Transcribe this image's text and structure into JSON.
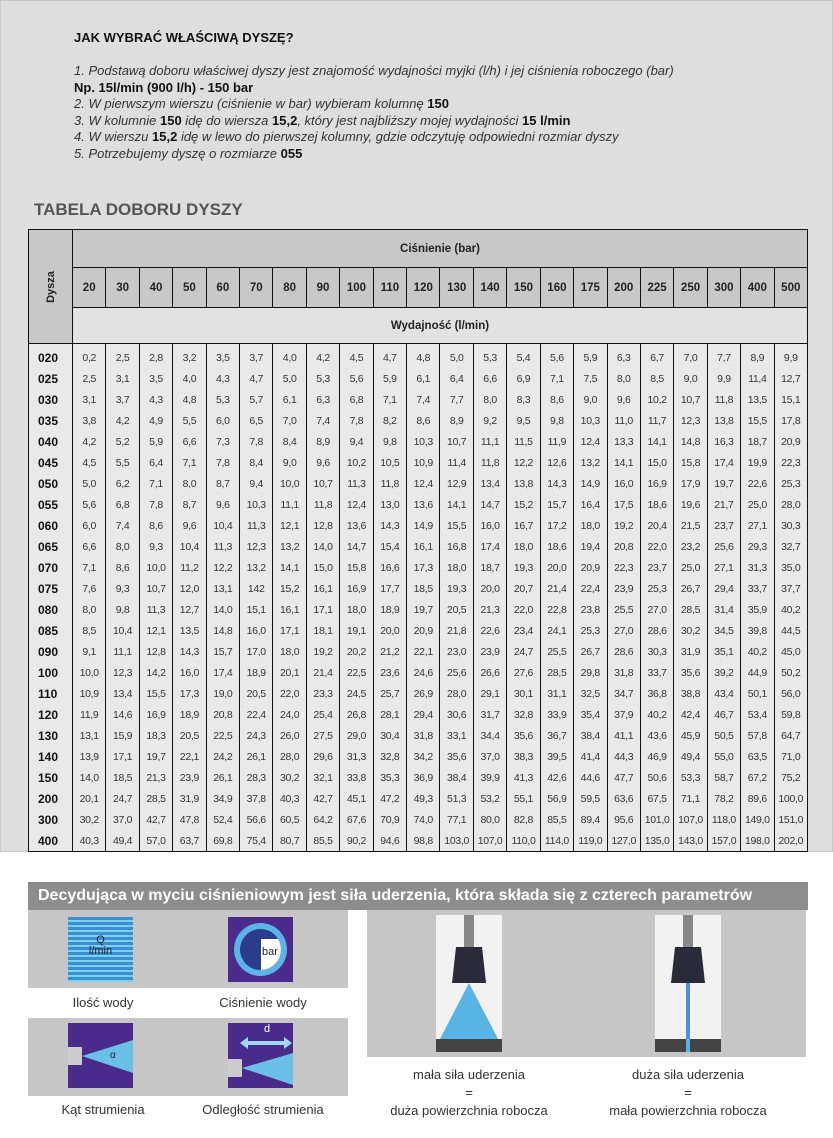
{
  "howto": {
    "title": "JAK WYBRAĆ WŁAŚCIWĄ DYSZĘ?",
    "step1": "1. Podstawą doboru właściwej dyszy jest znajomość wydajności myjki (l/h) i jej ciśnienia roboczego (bar)",
    "example": "Np. 15l/min (900 l/h) - 150 bar",
    "step2_text": "2. W pierwszym wierszu (ciśnienie w bar) wybieram kolumnę ",
    "step2_bold": "150",
    "step3_a": "3. W kolumnie ",
    "step3_b": "150",
    "step3_c": " idę do wiersza ",
    "step3_d": "15,2",
    "step3_e": ", który jest najbliższy mojej wydajności ",
    "step3_f": "15 l/min",
    "step4_a": "4. W wierszu ",
    "step4_b": "15,2",
    "step4_c": " idę w lewo do pierwszej kolumny, gdzie odczytuję odpowiedni rozmiar dyszy",
    "step5_a": "5. Potrzebujemy dyszę o rozmiarze ",
    "step5_b": "055"
  },
  "table": {
    "title": "TABELA DOBORU DYSZY",
    "dysza_label": "Dysza",
    "pressure_label": "Ciśnienie (bar)",
    "flow_label": "Wydajność (l/min)",
    "pressures": [
      "20",
      "30",
      "40",
      "50",
      "60",
      "70",
      "80",
      "90",
      "100",
      "110",
      "120",
      "130",
      "140",
      "150",
      "160",
      "175",
      "200",
      "225",
      "250",
      "300",
      "400",
      "500"
    ],
    "rows": [
      {
        "size": "020",
        "values": [
          "0,2",
          "2,5",
          "2,8",
          "3,2",
          "3,5",
          "3,7",
          "4,0",
          "4,2",
          "4,5",
          "4,7",
          "4,8",
          "5,0",
          "5,3",
          "5,4",
          "5,6",
          "5,9",
          "6,3",
          "6,7",
          "7,0",
          "7,7",
          "8,9",
          "9,9"
        ]
      },
      {
        "size": "025",
        "values": [
          "2,5",
          "3,1",
          "3,5",
          "4,0",
          "4,3",
          "4,7",
          "5,0",
          "5,3",
          "5,6",
          "5,9",
          "6,1",
          "6,4",
          "6,6",
          "6,9",
          "7,1",
          "7,5",
          "8,0",
          "8,5",
          "9,0",
          "9,9",
          "11,4",
          "12,7"
        ]
      },
      {
        "size": "030",
        "values": [
          "3,1",
          "3,7",
          "4,3",
          "4,8",
          "5,3",
          "5,7",
          "6,1",
          "6,3",
          "6,8",
          "7,1",
          "7,4",
          "7,7",
          "8,0",
          "8,3",
          "8,6",
          "9,0",
          "9,6",
          "10,2",
          "10,7",
          "11,8",
          "13,5",
          "15,1"
        ]
      },
      {
        "size": "035",
        "values": [
          "3,8",
          "4,2",
          "4,9",
          "5,5",
          "6,0",
          "6,5",
          "7,0",
          "7,4",
          "7,8",
          "8,2",
          "8,6",
          "8,9",
          "9,2",
          "9,5",
          "9,8",
          "10,3",
          "11,0",
          "11,7",
          "12,3",
          "13,8",
          "15,5",
          "17,8"
        ]
      },
      {
        "size": "040",
        "values": [
          "4,2",
          "5,2",
          "5,9",
          "6,6",
          "7,3",
          "7,8",
          "8,4",
          "8,9",
          "9,4",
          "9,8",
          "10,3",
          "10,7",
          "11,1",
          "11,5",
          "11,9",
          "12,4",
          "13,3",
          "14,1",
          "14,8",
          "16,3",
          "18,7",
          "20,9"
        ]
      },
      {
        "size": "045",
        "values": [
          "4,5",
          "5,5",
          "6,4",
          "7,1",
          "7,8",
          "8,4",
          "9,0",
          "9,6",
          "10,2",
          "10,5",
          "10,9",
          "11,4",
          "11,8",
          "12,2",
          "12,6",
          "13,2",
          "14,1",
          "15,0",
          "15,8",
          "17,4",
          "19,9",
          "22,3"
        ]
      },
      {
        "size": "050",
        "values": [
          "5,0",
          "6,2",
          "7,1",
          "8,0",
          "8,7",
          "9,4",
          "10,0",
          "10,7",
          "11,3",
          "11,8",
          "12,4",
          "12,9",
          "13,4",
          "13,8",
          "14,3",
          "14,9",
          "16,0",
          "16,9",
          "17,9",
          "19,7",
          "22,6",
          "25,3"
        ]
      },
      {
        "size": "055",
        "values": [
          "5,6",
          "6,8",
          "7,8",
          "8,7",
          "9,6",
          "10,3",
          "11,1",
          "11,8",
          "12,4",
          "13,0",
          "13,6",
          "14,1",
          "14,7",
          "15,2",
          "15,7",
          "16,4",
          "17,5",
          "18,6",
          "19,6",
          "21,7",
          "25,0",
          "28,0"
        ]
      },
      {
        "size": "060",
        "values": [
          "6,0",
          "7,4",
          "8,6",
          "9,6",
          "10,4",
          "11,3",
          "12,1",
          "12,8",
          "13,6",
          "14,3",
          "14,9",
          "15,5",
          "16,0",
          "16,7",
          "17,2",
          "18,0",
          "19,2",
          "20,4",
          "21,5",
          "23,7",
          "27,1",
          "30,3"
        ]
      },
      {
        "size": "065",
        "values": [
          "6,6",
          "8,0",
          "9,3",
          "10,4",
          "11,3",
          "12,3",
          "13,2",
          "14,0",
          "14,7",
          "15,4",
          "16,1",
          "16,8",
          "17,4",
          "18,0",
          "18,6",
          "19,4",
          "20,8",
          "22,0",
          "23,2",
          "25,6",
          "29,3",
          "32,7"
        ]
      },
      {
        "size": "070",
        "values": [
          "7,1",
          "8,6",
          "10,0",
          "11,2",
          "12,2",
          "13,2",
          "14,1",
          "15,0",
          "15,8",
          "16,6",
          "17,3",
          "18,0",
          "18,7",
          "19,3",
          "20,0",
          "20,9",
          "22,3",
          "23,7",
          "25,0",
          "27,1",
          "31,3",
          "35,0"
        ]
      },
      {
        "size": "075",
        "values": [
          "7,6",
          "9,3",
          "10,7",
          "12,0",
          "13,1",
          "142",
          "15,2",
          "16,1",
          "16,9",
          "17,7",
          "18,5",
          "19,3",
          "20,0",
          "20,7",
          "21,4",
          "22,4",
          "23,9",
          "25,3",
          "26,7",
          "29,4",
          "33,7",
          "37,7"
        ]
      },
      {
        "size": "080",
        "values": [
          "8,0",
          "9,8",
          "11,3",
          "12,7",
          "14,0",
          "15,1",
          "16,1",
          "17,1",
          "18,0",
          "18,9",
          "19,7",
          "20,5",
          "21,3",
          "22,0",
          "22,8",
          "23,8",
          "25,5",
          "27,0",
          "28,5",
          "31,4",
          "35,9",
          "40,2"
        ]
      },
      {
        "size": "085",
        "values": [
          "8,5",
          "10,4",
          "12,1",
          "13,5",
          "14,8",
          "16,0",
          "17,1",
          "18,1",
          "19,1",
          "20,0",
          "20,9",
          "21,8",
          "22,6",
          "23,4",
          "24,1",
          "25,3",
          "27,0",
          "28,6",
          "30,2",
          "34,5",
          "39,8",
          "44,5"
        ]
      },
      {
        "size": "090",
        "values": [
          "9,1",
          "11,1",
          "12,8",
          "14,3",
          "15,7",
          "17,0",
          "18,0",
          "19,2",
          "20,2",
          "21,2",
          "22,1",
          "23,0",
          "23,9",
          "24,7",
          "25,5",
          "26,7",
          "28,6",
          "30,3",
          "31,9",
          "35,1",
          "40,2",
          "45,0"
        ]
      },
      {
        "size": "100",
        "values": [
          "10,0",
          "12,3",
          "14,2",
          "16,0",
          "17,4",
          "18,9",
          "20,1",
          "21,4",
          "22,5",
          "23,6",
          "24,6",
          "25,6",
          "26,6",
          "27,6",
          "28,5",
          "29,8",
          "31,8",
          "33,7",
          "35,6",
          "39,2",
          "44,9",
          "50,2"
        ]
      },
      {
        "size": "110",
        "values": [
          "10,9",
          "13,4",
          "15,5",
          "17,3",
          "19,0",
          "20,5",
          "22,0",
          "23,3",
          "24,5",
          "25,7",
          "26,9",
          "28,0",
          "29,1",
          "30,1",
          "31,1",
          "32,5",
          "34,7",
          "36,8",
          "38,8",
          "43,4",
          "50,1",
          "56,0"
        ]
      },
      {
        "size": "120",
        "values": [
          "11,9",
          "14,6",
          "16,9",
          "18,9",
          "20,8",
          "22,4",
          "24,0",
          "25,4",
          "26,8",
          "28,1",
          "29,4",
          "30,6",
          "31,7",
          "32,8",
          "33,9",
          "35,4",
          "37,9",
          "40,2",
          "42,4",
          "46,7",
          "53,4",
          "59,8"
        ]
      },
      {
        "size": "130",
        "values": [
          "13,1",
          "15,9",
          "18,3",
          "20,5",
          "22,5",
          "24,3",
          "26,0",
          "27,5",
          "29,0",
          "30,4",
          "31,8",
          "33,1",
          "34,4",
          "35,6",
          "36,7",
          "38,4",
          "41,1",
          "43,6",
          "45,9",
          "50,5",
          "57,8",
          "64,7"
        ]
      },
      {
        "size": "140",
        "values": [
          "13,9",
          "17,1",
          "19,7",
          "22,1",
          "24,2",
          "26,1",
          "28,0",
          "29,6",
          "31,3",
          "32,8",
          "34,2",
          "35,6",
          "37,0",
          "38,3",
          "39,5",
          "41,4",
          "44,3",
          "46,9",
          "49,4",
          "55,0",
          "63,5",
          "71,0"
        ]
      },
      {
        "size": "150",
        "values": [
          "14,0",
          "18,5",
          "21,3",
          "23,9",
          "26,1",
          "28,3",
          "30,2",
          "32,1",
          "33,8",
          "35,3",
          "36,9",
          "38,4",
          "39,9",
          "41,3",
          "42,6",
          "44,6",
          "47,7",
          "50,6",
          "53,3",
          "58,7",
          "67,2",
          "75,2"
        ]
      },
      {
        "size": "200",
        "values": [
          "20,1",
          "24,7",
          "28,5",
          "31,9",
          "34,9",
          "37,8",
          "40,3",
          "42,7",
          "45,1",
          "47,2",
          "49,3",
          "51,3",
          "53,2",
          "55,1",
          "56,9",
          "59,5",
          "63,6",
          "67,5",
          "71,1",
          "78,2",
          "89,6",
          "100,0"
        ]
      },
      {
        "size": "300",
        "values": [
          "30,2",
          "37,0",
          "42,7",
          "47,8",
          "52,4",
          "56,6",
          "60,5",
          "64,2",
          "67,6",
          "70,9",
          "74,0",
          "77,1",
          "80,0",
          "82,8",
          "85,5",
          "89,4",
          "95,6",
          "101,0",
          "107,0",
          "118,0",
          "149,0",
          "151,0"
        ]
      },
      {
        "size": "400",
        "values": [
          "40,3",
          "49,4",
          "57,0",
          "63,7",
          "69,8",
          "75,4",
          "80,7",
          "85,5",
          "90,2",
          "94,6",
          "98,8",
          "103,0",
          "107,0",
          "110,0",
          "114,0",
          "119,0",
          "127,0",
          "135,0",
          "143,0",
          "157,0",
          "198,0",
          "202,0"
        ]
      }
    ]
  },
  "impact": {
    "banner": "Decydująca w myciu ciśnieniowym jest siła uderzenia, która składa się z czterech parametrów",
    "params": [
      {
        "label": "Ilość wody",
        "icon": "water-flow-icon",
        "icon_text_1": "Q",
        "icon_text_2": "l/min"
      },
      {
        "label": "Ciśnienie wody",
        "icon": "pressure-gauge-icon",
        "icon_text_1": "bar"
      },
      {
        "label": "Kąt strumienia",
        "icon": "spray-angle-icon",
        "icon_text_1": "α"
      },
      {
        "label": "Odległość strumienia",
        "icon": "spray-distance-icon",
        "icon_text_1": "d"
      }
    ],
    "left_caption": {
      "line1": "mała siła uderzenia",
      "eq": "=",
      "line2": "duża powierzchnia robocza"
    },
    "right_caption": {
      "line1": "duża siła uderzenia",
      "eq": "=",
      "line2": "mała powierzchnia robocza"
    }
  },
  "colors": {
    "icon_bg": "#4a2a8a",
    "water": "#5ab4e6",
    "banner": "#8d8d8d"
  }
}
